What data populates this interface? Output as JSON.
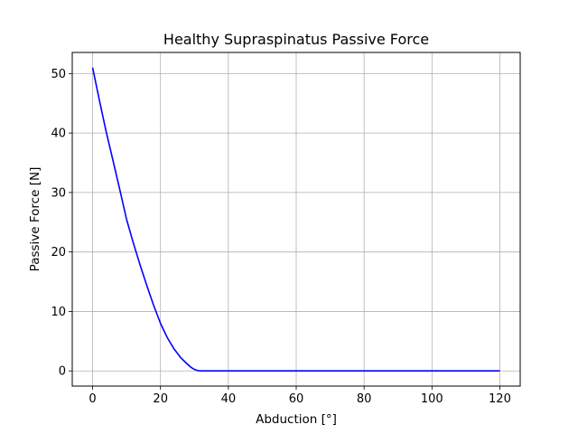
{
  "chart_data": {
    "type": "line",
    "title": "Healthy Supraspinatus Passive Force",
    "xlabel": "Abduction [°]",
    "ylabel": "Passive Force [N]",
    "xlim": [
      -6,
      126
    ],
    "ylim": [
      -2.55,
      53.55
    ],
    "xticks": [
      0,
      20,
      40,
      60,
      80,
      100,
      120
    ],
    "yticks": [
      0,
      10,
      20,
      30,
      40,
      50
    ],
    "grid": true,
    "series": [
      {
        "color": "#0000ff",
        "x": [
          0,
          2,
          4,
          6,
          8,
          10,
          12,
          14,
          16,
          18,
          20,
          22,
          24,
          26,
          28,
          29,
          30,
          31,
          32,
          34,
          40,
          60,
          80,
          100,
          120
        ],
        "y": [
          51,
          45.5,
          40.2,
          35.4,
          30.5,
          25.5,
          21.5,
          17.8,
          14.3,
          11.0,
          8.0,
          5.6,
          3.7,
          2.2,
          1.1,
          0.6,
          0.25,
          0.05,
          0,
          0,
          0,
          0,
          0,
          0,
          0
        ]
      }
    ]
  }
}
